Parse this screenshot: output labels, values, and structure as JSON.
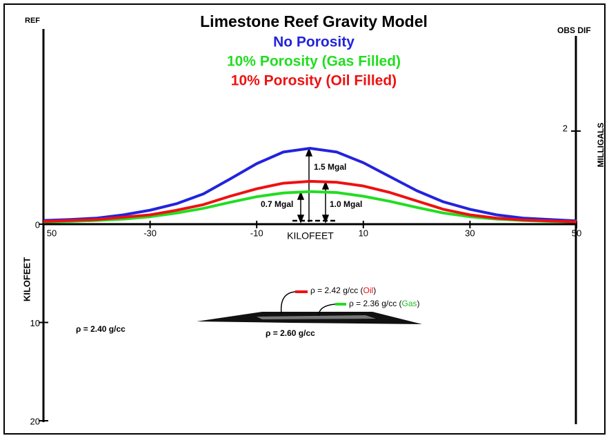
{
  "chart_data": {
    "type": "line",
    "title": "Limestone Reef Gravity Model",
    "x_label": "KILOFEET",
    "y_label": "MILLIGALS",
    "y_axis_title": "OBS DIF",
    "depth_axis_title": "REF",
    "depth_label": "KILOFEET",
    "x": [
      -50,
      -45,
      -40,
      -35,
      -30,
      -25,
      -20,
      -15,
      -10,
      -5,
      0,
      5,
      10,
      15,
      20,
      25,
      30,
      35,
      40,
      45,
      50
    ],
    "series": [
      {
        "name": "No Porosity",
        "color": "#2323dd",
        "values": [
          0.08,
          0.1,
          0.13,
          0.2,
          0.3,
          0.44,
          0.65,
          0.97,
          1.3,
          1.55,
          1.63,
          1.55,
          1.32,
          1.02,
          0.72,
          0.48,
          0.32,
          0.2,
          0.13,
          0.1,
          0.07
        ]
      },
      {
        "name": "10% Porosity (Gas Filled)",
        "color": "#22dd22",
        "values": [
          0.05,
          0.06,
          0.08,
          0.11,
          0.16,
          0.24,
          0.34,
          0.47,
          0.59,
          0.67,
          0.7,
          0.68,
          0.6,
          0.49,
          0.36,
          0.24,
          0.16,
          0.11,
          0.08,
          0.06,
          0.05
        ]
      },
      {
        "name": "10% Porosity (Oil Filled)",
        "color": "#ee1111",
        "values": [
          0.06,
          0.08,
          0.1,
          0.15,
          0.2,
          0.3,
          0.42,
          0.6,
          0.76,
          0.88,
          0.92,
          0.9,
          0.82,
          0.68,
          0.5,
          0.32,
          0.2,
          0.13,
          0.09,
          0.07,
          0.05
        ]
      }
    ],
    "xlim": [
      -50,
      50
    ],
    "xticks": [
      {
        "value": -50,
        "label": "50"
      },
      -30,
      -10,
      10,
      30,
      50
    ],
    "ylim": [
      0,
      4
    ],
    "yticks": [
      2
    ],
    "depth_lim": [
      0,
      20
    ],
    "depth_ticks": [
      0,
      10,
      20
    ],
    "annotations": [
      "1.5 Mgal",
      "1.0 Mgal",
      "0.7 Mgal",
      "ρ = 2.40 g/cc",
      "ρ = 2.60 g/cc"
    ],
    "oil_label": [
      "ρ = 2.42 g/cc (",
      "Oil",
      ")"
    ],
    "gas_label": [
      "ρ = 2.36 g/cc (",
      "Gas",
      ")"
    ]
  }
}
